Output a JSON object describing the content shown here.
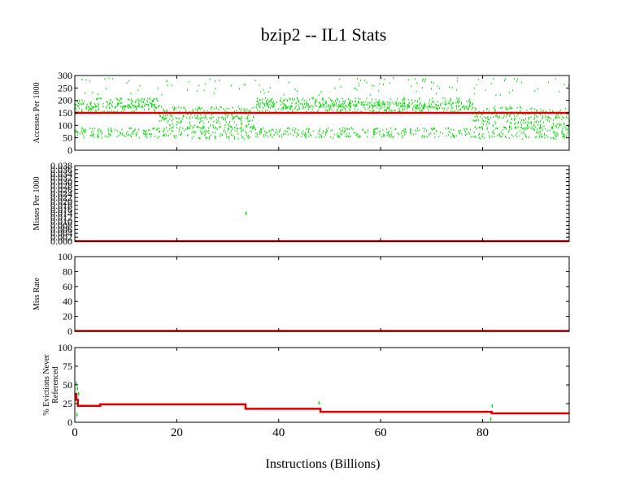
{
  "chart_data": {
    "title": "bzip2 -- IL1  Stats",
    "xlabel": "Instructions (Billions)",
    "xlim": [
      0,
      97
    ],
    "x_ticks": [
      "0",
      "20",
      "40",
      "60",
      "80"
    ],
    "colors": {
      "points": "#00dd00",
      "average": "#dd0000",
      "frame": "#000000"
    },
    "panels": [
      {
        "type": "scatter",
        "ylabel": "Accesses Per 1000",
        "ylim": [
          0,
          300
        ],
        "y_ticks": [
          "0",
          "50",
          "100",
          "150",
          "200",
          "250",
          "300"
        ],
        "bands": [
          {
            "x": [
              0,
              16.5
            ],
            "levels": [
              70,
              170,
              190
            ],
            "spread": 20
          },
          {
            "x": [
              16.5,
              35.5
            ],
            "levels": [
              70,
              110,
              150
            ],
            "spread": 25
          },
          {
            "x": [
              35.5,
              78
            ],
            "levels": [
              70,
              170,
              190
            ],
            "spread": 20
          },
          {
            "x": [
              78,
              97
            ],
            "levels": [
              70,
              110,
              150
            ],
            "spread": 25
          }
        ],
        "average": [
          [
            0,
            150
          ],
          [
            97,
            150
          ]
        ]
      },
      {
        "type": "scatter",
        "ylabel": "Misses Per 1000",
        "ylim": [
          0,
          0.038
        ],
        "y_ticks": [
          "0.000",
          "0.002",
          "0.004",
          "0.006",
          "0.008",
          "0.010",
          "0.012",
          "0.014",
          "0.016",
          "0.018",
          "0.020",
          "0.022",
          "0.024",
          "0.026",
          "0.028",
          "0.030",
          "0.032",
          "0.034",
          "0.036",
          "0.038"
        ],
        "outliers": [
          [
            33.5,
            0.014
          ]
        ],
        "average": [
          [
            0,
            0.0
          ],
          [
            97,
            0.0
          ]
        ]
      },
      {
        "type": "line",
        "ylabel": "Miss Rate",
        "ylim": [
          0,
          100
        ],
        "y_ticks": [
          "0",
          "20",
          "40",
          "60",
          "80",
          "100"
        ],
        "average": [
          [
            0,
            0.5
          ],
          [
            97,
            0.5
          ]
        ]
      },
      {
        "type": "line",
        "ylabel": "% Evictions Never Referenced",
        "ylim": [
          0,
          100
        ],
        "y_ticks": [
          "0",
          "25",
          "50",
          "75",
          "100"
        ],
        "outliers": [
          [
            0.2,
            52
          ],
          [
            0.4,
            45
          ],
          [
            0.6,
            38
          ],
          [
            47.8,
            26
          ],
          [
            81.8,
            22
          ],
          [
            81.5,
            4
          ],
          [
            0.3,
            10
          ]
        ],
        "average": [
          [
            0,
            38
          ],
          [
            0.3,
            30
          ],
          [
            0.6,
            22
          ],
          [
            3,
            22
          ],
          [
            5,
            24
          ],
          [
            33.3,
            24
          ],
          [
            33.5,
            18
          ],
          [
            47.8,
            18
          ],
          [
            48.2,
            14
          ],
          [
            81.5,
            14
          ],
          [
            81.8,
            12
          ],
          [
            97,
            12
          ]
        ]
      }
    ]
  }
}
